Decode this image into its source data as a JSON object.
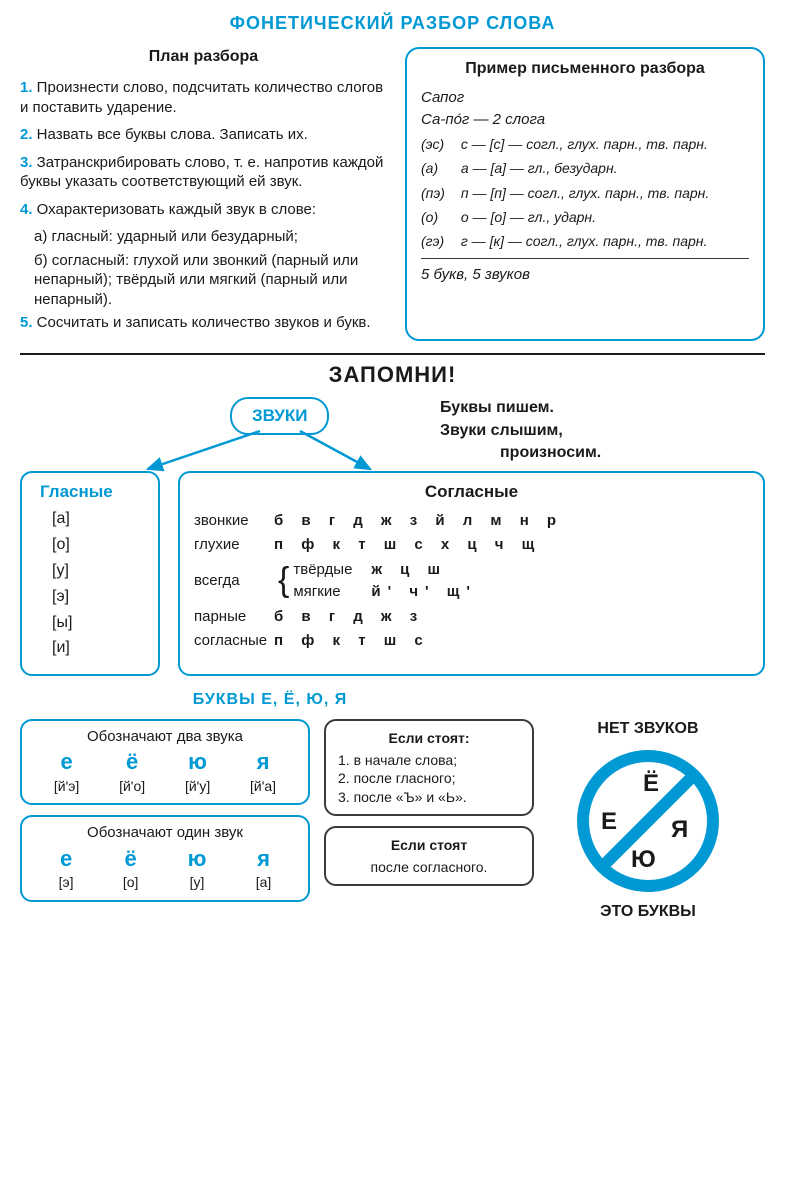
{
  "colors": {
    "accent": "#0099d4",
    "text": "#1a1a1a",
    "bg": "#ffffff",
    "dark_border": "#3a3a3a"
  },
  "title": "ФОНЕТИЧЕСКИЙ РАЗБОР СЛОВА",
  "plan": {
    "heading": "План разбора",
    "items": [
      {
        "n": "1.",
        "text": "Произнести слово, подсчитать количество слогов и поставить ударение."
      },
      {
        "n": "2.",
        "text": "Назвать все буквы слова. Записать их."
      },
      {
        "n": "3.",
        "text": "Затранскрибировать слово, т. е. напротив каждой буквы указать соответствующий ей звук."
      },
      {
        "n": "4.",
        "text": "Охарактеризовать каждый звук в слове:",
        "sub": [
          "а) гласный: ударный или безударный;",
          "б) согласный: глухой или звонкий (парный или непарный); твёрдый или мягкий (парный или непарный)."
        ]
      },
      {
        "n": "5.",
        "text": "Сосчитать и записать количество звуков и букв."
      }
    ]
  },
  "example": {
    "heading": "Пример письменного разбора",
    "word": "Сапог",
    "syllables": "Са-по́г — 2 слога",
    "lines": [
      {
        "tag": "(эс)",
        "body": "с — [с] — согл., глух. парн., тв. парн."
      },
      {
        "tag": "(а)",
        "body": "а — [а] — гл., безударн."
      },
      {
        "tag": "(пэ)",
        "body": "п — [п] — согл., глух. парн., тв. парн."
      },
      {
        "tag": "(о)",
        "body": "о — [о] — гл., ударн."
      },
      {
        "tag": "(гэ)",
        "body": "г — [к] — согл., глух. парн., тв. парн."
      }
    ],
    "footer": "5 букв, 5 звуков"
  },
  "zapomni": "ЗАПОМНИ!",
  "zvuki_label": "ЗВУКИ",
  "remember": {
    "l1": "Буквы пишем.",
    "l2": "Звуки слышим,",
    "l3": "произносим."
  },
  "vowels": {
    "title": "Гласные",
    "items": [
      "[а]",
      "[о]",
      "[у]",
      "[э]",
      "[ы]",
      "[и]"
    ]
  },
  "consonants": {
    "title": "Согласные",
    "voiced_label": "звонкие",
    "voiced": "б в г д ж з й л м н р",
    "voiceless_label": "глухие",
    "voiceless": "п ф к т ш с х ц ч щ",
    "always_label": "всегда",
    "hard_label": "твёрдые",
    "hard": "ж ц ш",
    "soft_label": "мягкие",
    "soft": "й' ч' щ'",
    "paired_label1": "парные",
    "paired1": "б в г д ж з",
    "paired_label2": "согласные",
    "paired2": "п ф к т ш с"
  },
  "eyoya": {
    "title": "БУКВЫ Е, Ё, Ю, Я",
    "two_label": "Обозначают два звука",
    "two": [
      {
        "l": "е",
        "p": "[й'э]"
      },
      {
        "l": "ё",
        "p": "[й'о]"
      },
      {
        "l": "ю",
        "p": "[й'у]"
      },
      {
        "l": "я",
        "p": "[й'а]"
      }
    ],
    "one_label": "Обозначают один звук",
    "one": [
      {
        "l": "е",
        "p": "[э]"
      },
      {
        "l": "ё",
        "p": "[о]"
      },
      {
        "l": "ю",
        "p": "[у]"
      },
      {
        "l": "я",
        "p": "[а]"
      }
    ],
    "cond1_title": "Если стоят:",
    "cond1": [
      "1. в начале слова;",
      "2. после гласного;",
      "3. после «Ъ» и «Ь»."
    ],
    "cond2_title": "Если стоят",
    "cond2_text": "после согласного."
  },
  "no_sounds": {
    "title": "НЕТ ЗВУКОВ",
    "letters": [
      "Ё",
      "Е",
      "Я",
      "Ю"
    ],
    "footer": "ЭТО БУКВЫ"
  }
}
